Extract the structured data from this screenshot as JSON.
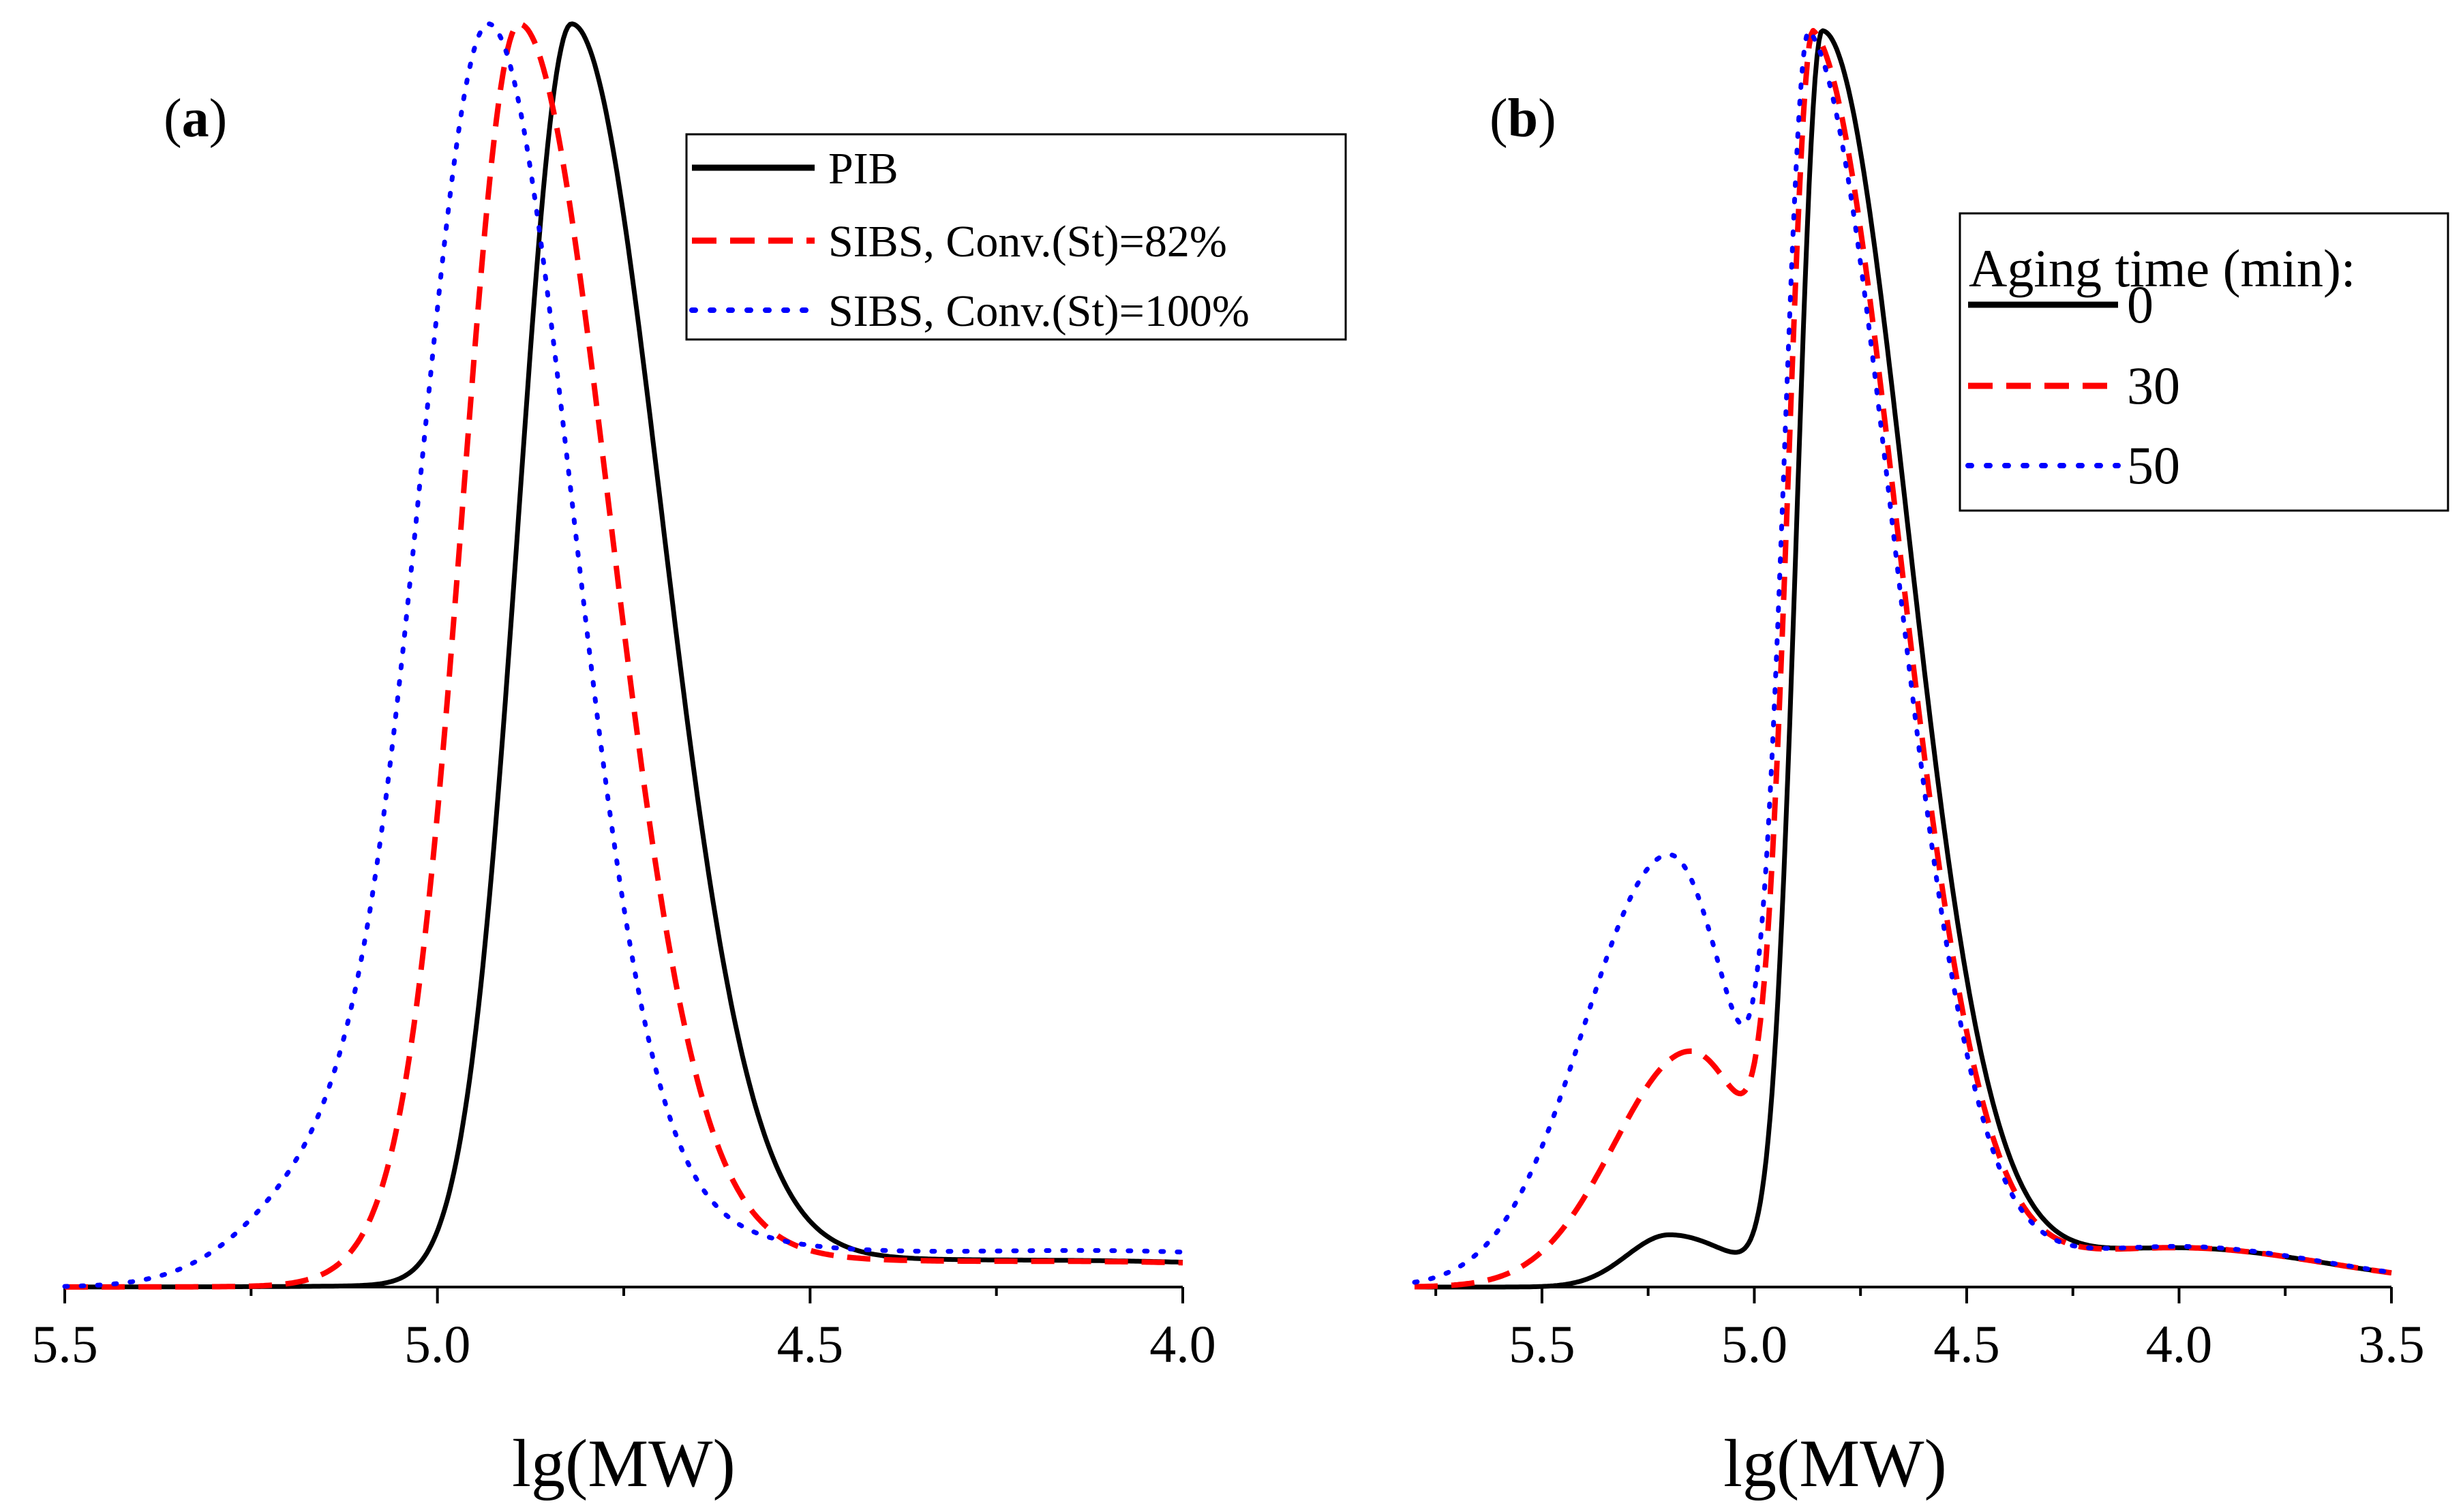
{
  "colors": {
    "black": "#000000",
    "red": "#ff0000",
    "blue": "#0000ff"
  },
  "chart_data": [
    {
      "type": "line",
      "panel_label_open": "(",
      "panel_label_letter": "a",
      "panel_label_close": ")",
      "xlabel": "lg(MW)",
      "ylabel": "",
      "xlim": [
        5.5,
        4.0
      ],
      "ylim": [
        0,
        1
      ],
      "x_reversed": true,
      "x_ticks": [
        5.5,
        5.0,
        4.5,
        4.0
      ],
      "x_tick_labels": [
        "5.5",
        "5.0",
        "4.5",
        "4.0"
      ],
      "minor_ticks": [
        5.25,
        4.75,
        4.25
      ],
      "legend": {
        "position": "top-right",
        "title": ""
      },
      "series": [
        {
          "name": "PIB",
          "style": "solid",
          "color": "#000000",
          "shape": "sum",
          "components": [
            [
              4.82,
              0.07,
              0.12,
              0.97
            ],
            [
              4.9,
              0.06,
              0.3,
              0.03
            ]
          ],
          "tail": [
            4.1,
            0.4,
            0.02
          ]
        },
        {
          "name": "SIBS, Conv.(St)=82%",
          "style": "dash",
          "color": "#ff0000",
          "shape": "sum",
          "components": [
            [
              4.89,
              0.075,
              0.12,
              0.97
            ],
            [
              5.0,
              0.08,
              0.3,
              0.05
            ]
          ],
          "tail": [
            4.1,
            0.4,
            0.02
          ]
        },
        {
          "name": "SIBS, Conv.(St)=100%",
          "style": "dot",
          "color": "#0000ff",
          "shape": "sum",
          "components": [
            [
              4.93,
              0.09,
              0.11,
              0.95
            ],
            [
              5.1,
              0.12,
              0.3,
              0.12
            ]
          ],
          "tail": [
            4.1,
            0.4,
            0.03
          ]
        }
      ]
    },
    {
      "type": "line",
      "panel_label_open": "(",
      "panel_label_letter": "b",
      "panel_label_close": ")",
      "xlabel": "lg(MW)",
      "ylabel": "",
      "xlim": [
        5.8,
        3.5
      ],
      "ylim": [
        0,
        1
      ],
      "x_reversed": true,
      "x_ticks": [
        5.5,
        5.0,
        4.5,
        4.0,
        3.5
      ],
      "x_tick_labels": [
        "5.5",
        "5.0",
        "4.5",
        "4.0",
        "3.5"
      ],
      "minor_ticks": [
        5.75,
        5.25,
        4.75,
        4.25,
        3.75
      ],
      "legend": {
        "position": "top-right",
        "title": "Aging time (min):"
      },
      "series": [
        {
          "name": "0",
          "style": "solid",
          "color": "#000000",
          "shape": "sum",
          "components": [
            [
              4.84,
              0.06,
              0.2,
              0.96
            ],
            [
              5.2,
              0.1,
              0.15,
              0.04
            ]
          ],
          "tail": [
            4.0,
            0.35,
            0.03
          ]
        },
        {
          "name": "30",
          "style": "dash",
          "color": "#ff0000",
          "shape": "sum",
          "components": [
            [
              4.86,
              0.06,
              0.2,
              0.93
            ],
            [
              5.15,
              0.18,
              0.15,
              0.18
            ]
          ],
          "tail": [
            4.0,
            0.35,
            0.03
          ]
        },
        {
          "name": "50",
          "style": "dot",
          "color": "#0000ff",
          "shape": "sum",
          "components": [
            [
              4.87,
              0.06,
              0.2,
              0.9
            ],
            [
              5.2,
              0.2,
              0.15,
              0.32
            ]
          ],
          "tail": [
            4.0,
            0.35,
            0.03
          ]
        }
      ]
    }
  ]
}
